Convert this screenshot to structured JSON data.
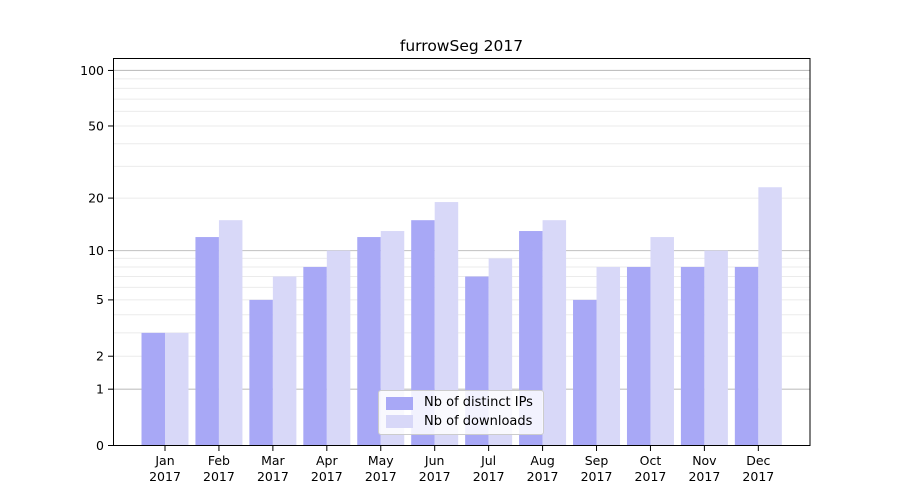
{
  "chart_data": {
    "type": "bar",
    "title": "furrowSeg 2017",
    "months": [
      "Jan",
      "Feb",
      "Mar",
      "Apr",
      "May",
      "Jun",
      "Jul",
      "Aug",
      "Sep",
      "Oct",
      "Nov",
      "Dec"
    ],
    "year_label": "2017",
    "series": [
      {
        "name": "Nb of distinct IPs",
        "color": "#a8a8f6",
        "values": [
          3,
          12,
          5,
          8,
          12,
          15,
          7,
          13,
          5,
          8,
          8,
          8
        ]
      },
      {
        "name": "Nb of downloads",
        "color": "#d8d8f8",
        "values": [
          3,
          15,
          7,
          10,
          13,
          19,
          9,
          15,
          8,
          12,
          10,
          23
        ]
      }
    ],
    "y_scale": "log1p",
    "y_ticks": [
      0,
      1,
      2,
      5,
      10,
      20,
      50,
      100
    ],
    "ylim": [
      0,
      116
    ],
    "grid": "on",
    "legend_position": "lower-center-inside"
  },
  "colors": {
    "grid_major": "#c0c0c0",
    "grid_minor": "#ebebeb",
    "axis": "#000000",
    "tick_text": "#000000"
  }
}
